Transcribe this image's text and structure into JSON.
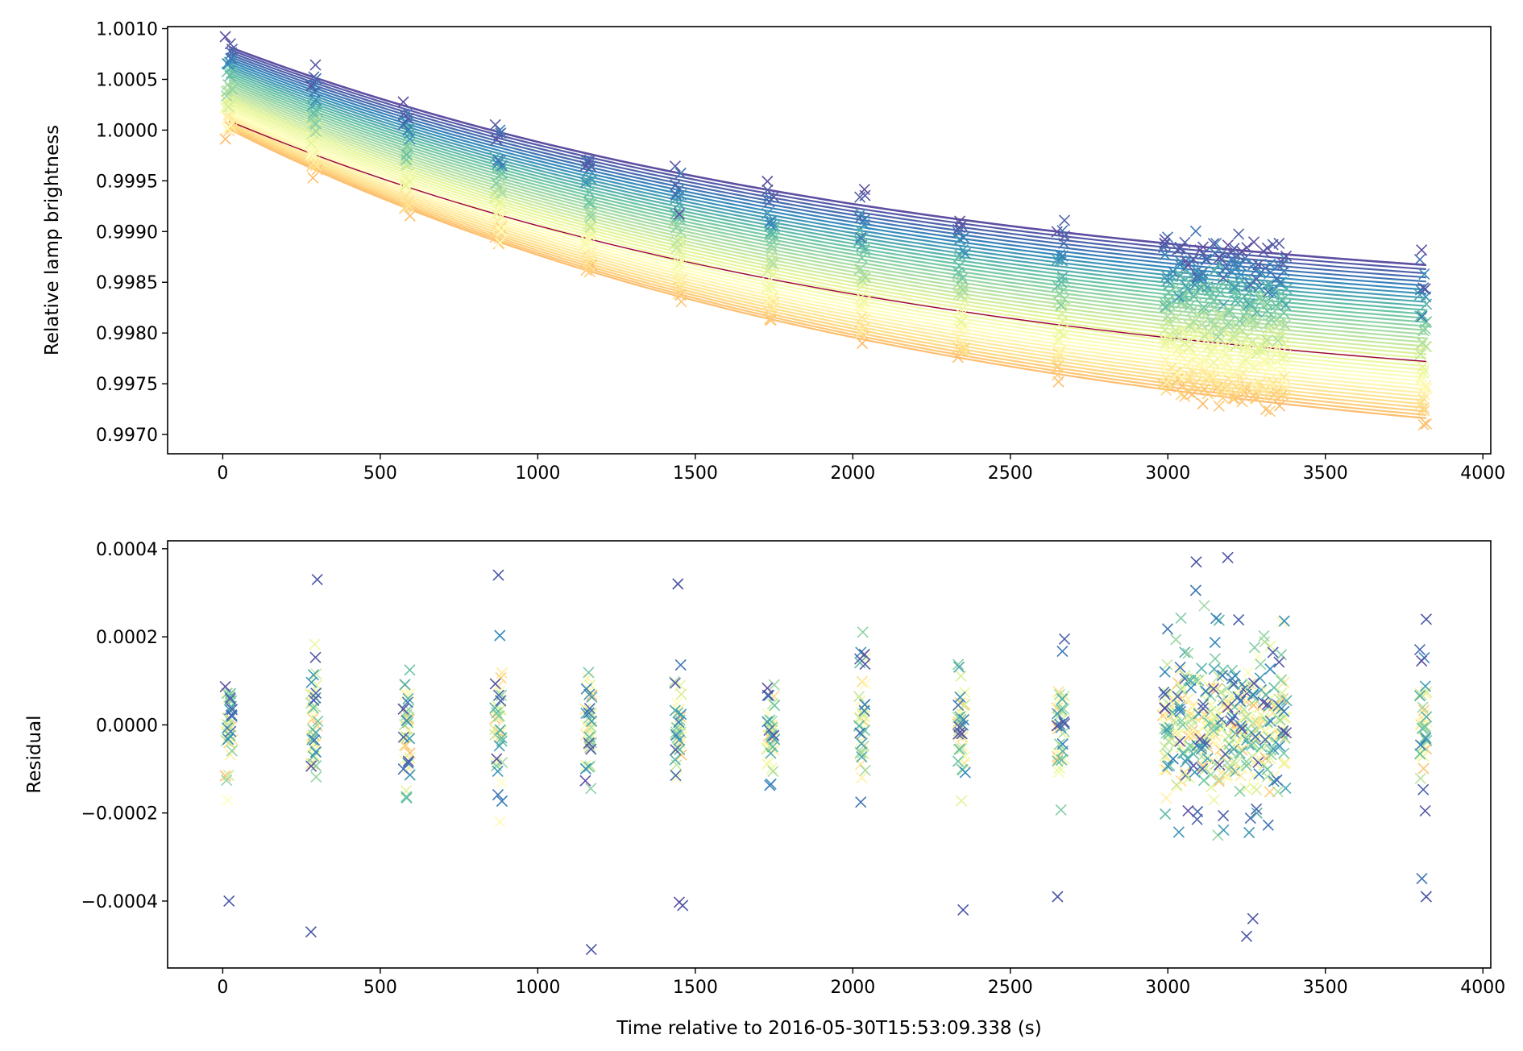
{
  "chart_data": [
    {
      "type": "line",
      "title": "",
      "xlabel": "",
      "ylabel": "Relative lamp brightness",
      "xlim": [
        -175,
        4025
      ],
      "ylim": [
        0.99681,
        1.00102
      ],
      "x_ticks": [
        "0",
        "500",
        "1000",
        "1500",
        "2000",
        "2500",
        "3000",
        "3500",
        "4000"
      ],
      "y_ticks": [
        "0.9970",
        "0.9975",
        "0.9980",
        "0.9985",
        "0.9990",
        "0.9995",
        "1.0000",
        "1.0005",
        "1.0010"
      ],
      "y_tick_values": [
        0.997,
        0.9975,
        0.998,
        0.9985,
        0.999,
        0.9995,
        1.0,
        1.0005,
        1.001
      ],
      "grid": false,
      "colormap": "Spectral",
      "colormap_stops": [
        "#9e0142",
        "#d53e4f",
        "#f46d43",
        "#fdae61",
        "#fee08b",
        "#ffffbf",
        "#e6f598",
        "#abdda4",
        "#66c2a5",
        "#3288bd",
        "#5e4fa2"
      ],
      "model": {
        "description_curves": "exponential decay fits, one per lamp",
        "x_start": 20,
        "x_end": 3820,
        "top_curve": {
          "start": 1.00082,
          "end": 0.99867,
          "color": "#5e4fa2"
        },
        "bottom_curve": {
          "start": 1.00001,
          "end": 0.99716,
          "color": "#fee8a8"
        },
        "highlight_curve": {
          "start": 1.00009,
          "end": 0.99772,
          "color": "#9e0142"
        },
        "num_curves": 40
      },
      "observation_times": [
        20,
        290,
        585,
        875,
        1160,
        1445,
        1740,
        2030,
        2345,
        2660,
        3000,
        3040,
        3080,
        3120,
        3160,
        3200,
        3240,
        3280,
        3320,
        3360,
        3810
      ],
      "marker": "x"
    },
    {
      "type": "scatter",
      "title": "",
      "xlabel": "Time relative to 2016-05-30T15:53:09.338 (s)",
      "ylabel": "Residual",
      "xlim": [
        -175,
        4025
      ],
      "ylim": [
        -0.000552,
        0.000418
      ],
      "x_ticks": [
        "0",
        "500",
        "1000",
        "1500",
        "2000",
        "2500",
        "3000",
        "3500",
        "4000"
      ],
      "y_ticks": [
        "−0.0004",
        "−0.0002",
        "0.0000",
        "0.0002",
        "0.0004"
      ],
      "y_tick_values": [
        -0.0004,
        -0.0002,
        0.0,
        0.0002,
        0.0004
      ],
      "grid": false,
      "marker": "x",
      "notable_points": [
        {
          "x": 20,
          "y": -0.0004
        },
        {
          "x": 280,
          "y": -0.00047
        },
        {
          "x": 300,
          "y": 0.00033
        },
        {
          "x": 875,
          "y": 0.00034
        },
        {
          "x": 1170,
          "y": -0.00051
        },
        {
          "x": 1445,
          "y": 0.00032
        },
        {
          "x": 1460,
          "y": -0.00041
        },
        {
          "x": 2350,
          "y": -0.00042
        },
        {
          "x": 2650,
          "y": -0.00039
        },
        {
          "x": 3090,
          "y": 0.00037
        },
        {
          "x": 3190,
          "y": 0.00038
        },
        {
          "x": 3250,
          "y": -0.00048
        },
        {
          "x": 3270,
          "y": -0.00044
        },
        {
          "x": 3820,
          "y": -0.00039
        },
        {
          "x": 3820,
          "y": 0.00024
        }
      ],
      "spread_per_time": {
        "typical": 0.00013,
        "dense_block": 0.0002
      }
    }
  ]
}
